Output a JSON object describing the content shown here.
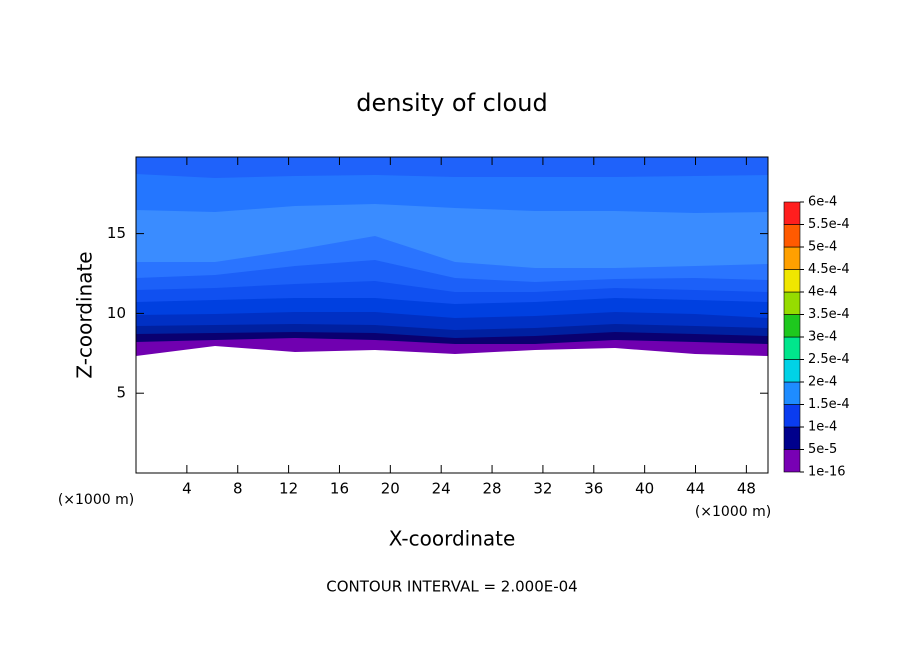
{
  "chart_data": {
    "type": "contour",
    "title": "density of cloud",
    "x_label": "X-coordinate",
    "y_label": "Z-coordinate",
    "x_unit": "(×1000 m)",
    "y_unit": "(×1000 m)",
    "footer": "CONTOUR INTERVAL = 2.000E-04",
    "xlim": [
      0,
      49.7
    ],
    "ylim": [
      0,
      19.8
    ],
    "xticks": [
      4,
      8,
      12,
      16,
      20,
      24,
      28,
      32,
      36,
      40,
      44,
      48
    ],
    "yticks": [
      5,
      10,
      15
    ],
    "colorbar": {
      "levels": [
        {
          "value": 1e-16,
          "label": "1e-16"
        },
        {
          "value": 5e-05,
          "label": "5e-5"
        },
        {
          "value": 0.0001,
          "label": "1e-4"
        },
        {
          "value": 0.00015,
          "label": "1.5e-4"
        },
        {
          "value": 0.0002,
          "label": "2e-4"
        },
        {
          "value": 0.00025,
          "label": "2.5e-4"
        },
        {
          "value": 0.0003,
          "label": "3e-4"
        },
        {
          "value": 0.00035,
          "label": "3.5e-4"
        },
        {
          "value": 0.0004,
          "label": "4e-4"
        },
        {
          "value": 0.00045,
          "label": "4.5e-4"
        },
        {
          "value": 0.0005,
          "label": "5e-4"
        },
        {
          "value": 0.00055,
          "label": "5.5e-4"
        },
        {
          "value": 0.0006,
          "label": "6e-4"
        }
      ],
      "colors": [
        "#7800b4",
        "#00008c",
        "#0a3cf0",
        "#1e8cff",
        "#00d2e6",
        "#00e68c",
        "#1ec81e",
        "#96dc00",
        "#f0e600",
        "#ffa000",
        "#ff5a00",
        "#ff1e1e"
      ]
    }
  }
}
